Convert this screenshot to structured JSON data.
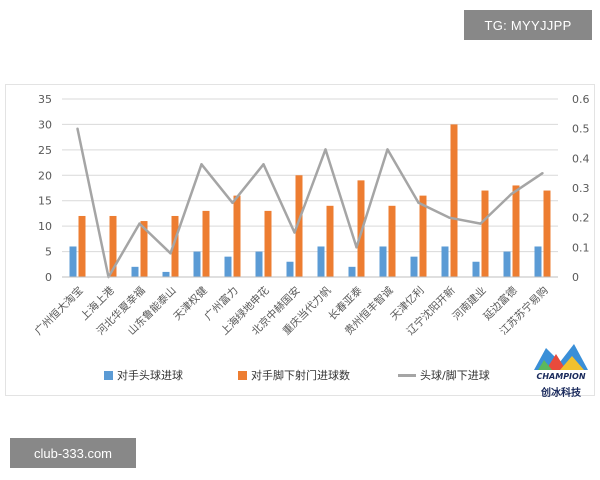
{
  "watermarks": {
    "top_right": "TG: MYYJJPP",
    "bottom_left": "club-333.com"
  },
  "logo": {
    "name": "CHAMPION",
    "chinese": "创冰科技"
  },
  "colors": {
    "series_blue": "#5b9bd5",
    "series_orange": "#ed7d31",
    "series_grey": "#a5a5a5",
    "axis_text": "#595959",
    "grid": "#d9d9d9"
  },
  "chart_data": {
    "type": "bar",
    "categories": [
      "广州恒大淘宝",
      "上海上港",
      "河北华夏幸福",
      "山东鲁能泰山",
      "天津权健",
      "广州富力",
      "上海绿地申花",
      "北京中赫国安",
      "重庆当代力帆",
      "长春亚泰",
      "贵州恒丰智诚",
      "天津亿利",
      "辽宁沈阳开新",
      "河南建业",
      "延边富德",
      "江苏苏宁易购"
    ],
    "series": [
      {
        "name": "对手头球进球",
        "type": "bar",
        "axis": "left",
        "color": "#5b9bd5",
        "values": [
          6,
          0,
          2,
          1,
          5,
          4,
          5,
          3,
          6,
          2,
          6,
          4,
          6,
          3,
          5,
          6
        ]
      },
      {
        "name": "对手脚下射门进球数",
        "type": "bar",
        "axis": "left",
        "color": "#ed7d31",
        "values": [
          12,
          12,
          11,
          12,
          13,
          16,
          13,
          20,
          14,
          19,
          14,
          16,
          30,
          17,
          18,
          17
        ]
      },
      {
        "name": "头球/脚下进球",
        "type": "line",
        "axis": "right",
        "color": "#a5a5a5",
        "values": [
          0.5,
          0,
          0.18,
          0.08,
          0.38,
          0.25,
          0.38,
          0.15,
          0.43,
          0.1,
          0.43,
          0.25,
          0.2,
          0.18,
          0.28,
          0.35
        ]
      }
    ],
    "y_left": {
      "min": 0,
      "max": 35,
      "ticks": [
        "0",
        "5",
        "10",
        "15",
        "20",
        "25",
        "30",
        "35"
      ]
    },
    "y_right": {
      "min": 0,
      "max": 0.6,
      "ticks": [
        "0",
        "0.1",
        "0.2",
        "0.3",
        "0.4",
        "0.5",
        "0.6"
      ]
    },
    "grid": true,
    "legend_position": "bottom"
  }
}
